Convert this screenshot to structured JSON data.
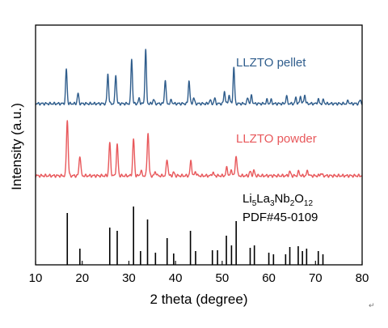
{
  "chart_data": {
    "type": "line",
    "xlabel": "2 theta (degree)",
    "ylabel": "Intensity (a.u.)",
    "xlim": [
      10,
      80
    ],
    "xticks": [
      10,
      20,
      30,
      40,
      50,
      60,
      70,
      80
    ],
    "grid": false,
    "legend": "inline",
    "series": [
      {
        "name": "LLZTO pellet",
        "color": "#2f5d8c",
        "peaks": [
          {
            "x": 16.6,
            "h": 0.47
          },
          {
            "x": 19.1,
            "h": 0.14
          },
          {
            "x": 25.5,
            "h": 0.41
          },
          {
            "x": 27.2,
            "h": 0.4
          },
          {
            "x": 30.6,
            "h": 0.62
          },
          {
            "x": 32.2,
            "h": 0.07
          },
          {
            "x": 33.6,
            "h": 0.74
          },
          {
            "x": 35.3,
            "h": 0.06
          },
          {
            "x": 37.8,
            "h": 0.33
          },
          {
            "x": 39.1,
            "h": 0.05
          },
          {
            "x": 42.9,
            "h": 0.32
          },
          {
            "x": 43.9,
            "h": 0.08
          },
          {
            "x": 47.4,
            "h": 0.05
          },
          {
            "x": 48.4,
            "h": 0.07
          },
          {
            "x": 50.5,
            "h": 0.17
          },
          {
            "x": 51.5,
            "h": 0.12
          },
          {
            "x": 52.5,
            "h": 0.5
          },
          {
            "x": 55.5,
            "h": 0.08
          },
          {
            "x": 56.3,
            "h": 0.11
          },
          {
            "x": 59.6,
            "h": 0.05
          },
          {
            "x": 60.5,
            "h": 0.05
          },
          {
            "x": 63.8,
            "h": 0.1
          },
          {
            "x": 65.8,
            "h": 0.08
          },
          {
            "x": 66.8,
            "h": 0.1
          },
          {
            "x": 67.7,
            "h": 0.12
          },
          {
            "x": 70.6,
            "h": 0.06
          },
          {
            "x": 71.7,
            "h": 0.05
          },
          {
            "x": 77.0,
            "h": 0.04
          },
          {
            "x": 79.6,
            "h": 0.05
          }
        ]
      },
      {
        "name": "LLZTO powder",
        "color": "#e8585b",
        "peaks": [
          {
            "x": 16.8,
            "h": 0.69
          },
          {
            "x": 19.5,
            "h": 0.25
          },
          {
            "x": 25.9,
            "h": 0.4
          },
          {
            "x": 27.5,
            "h": 0.38
          },
          {
            "x": 31.0,
            "h": 0.45
          },
          {
            "x": 32.6,
            "h": 0.06
          },
          {
            "x": 34.1,
            "h": 0.53
          },
          {
            "x": 35.7,
            "h": 0.05
          },
          {
            "x": 38.2,
            "h": 0.2
          },
          {
            "x": 39.6,
            "h": 0.04
          },
          {
            "x": 43.3,
            "h": 0.18
          },
          {
            "x": 44.3,
            "h": 0.05
          },
          {
            "x": 48.0,
            "h": 0.04
          },
          {
            "x": 51.0,
            "h": 0.1
          },
          {
            "x": 52.0,
            "h": 0.07
          },
          {
            "x": 53.0,
            "h": 0.25
          },
          {
            "x": 56.0,
            "h": 0.05
          },
          {
            "x": 56.8,
            "h": 0.06
          },
          {
            "x": 64.5,
            "h": 0.05
          },
          {
            "x": 66.4,
            "h": 0.05
          },
          {
            "x": 68.3,
            "h": 0.06
          },
          {
            "x": 71.2,
            "h": 0.03
          }
        ]
      }
    ],
    "reference": {
      "formula": {
        "base1": "Li",
        "sub1": "5",
        "base2": "La",
        "sub2": "3",
        "base3": "Nb",
        "sub3": "2",
        "base4": "O",
        "sub4": "12"
      },
      "card": "PDF#45-0109",
      "color": "#000000",
      "lines": [
        {
          "x": 16.8,
          "h": 0.64
        },
        {
          "x": 19.5,
          "h": 0.2
        },
        {
          "x": 25.9,
          "h": 0.46
        },
        {
          "x": 27.5,
          "h": 0.42
        },
        {
          "x": 31.0,
          "h": 0.72
        },
        {
          "x": 32.5,
          "h": 0.17
        },
        {
          "x": 34.0,
          "h": 0.56
        },
        {
          "x": 35.7,
          "h": 0.15
        },
        {
          "x": 38.2,
          "h": 0.33
        },
        {
          "x": 39.6,
          "h": 0.14
        },
        {
          "x": 43.2,
          "h": 0.42
        },
        {
          "x": 44.3,
          "h": 0.17
        },
        {
          "x": 47.9,
          "h": 0.18
        },
        {
          "x": 49.0,
          "h": 0.18
        },
        {
          "x": 50.9,
          "h": 0.36
        },
        {
          "x": 52.0,
          "h": 0.24
        },
        {
          "x": 53.0,
          "h": 0.54
        },
        {
          "x": 56.0,
          "h": 0.21
        },
        {
          "x": 56.9,
          "h": 0.24
        },
        {
          "x": 60.0,
          "h": 0.15
        },
        {
          "x": 61.0,
          "h": 0.13
        },
        {
          "x": 63.6,
          "h": 0.13
        },
        {
          "x": 64.5,
          "h": 0.22
        },
        {
          "x": 66.3,
          "h": 0.23
        },
        {
          "x": 67.2,
          "h": 0.17
        },
        {
          "x": 68.1,
          "h": 0.2
        },
        {
          "x": 70.6,
          "h": 0.17
        },
        {
          "x": 71.6,
          "h": 0.13
        }
      ]
    }
  },
  "decoration": {
    "mark": "↵"
  }
}
